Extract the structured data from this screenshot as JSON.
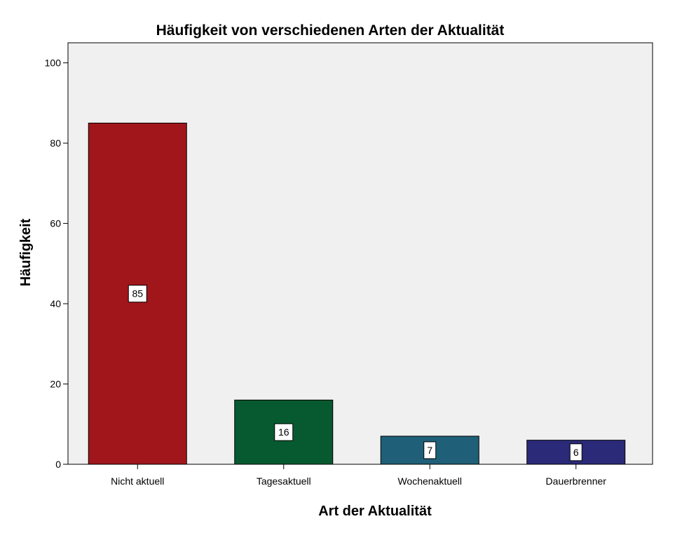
{
  "chart_data": {
    "type": "bar",
    "title": "Häufigkeit von verschiedenen Arten der Aktualität",
    "xlabel": "Art der Aktualität",
    "ylabel": "Häufigkeit",
    "categories": [
      "Nicht aktuell",
      "Tagesaktuell",
      "Wochenaktuell",
      "Dauerbrenner"
    ],
    "values": [
      85,
      16,
      7,
      6
    ],
    "data_labels": [
      "85",
      "16",
      "7",
      "6"
    ],
    "colors": [
      "#a0161b",
      "#075a30",
      "#1f5f78",
      "#2a2a78"
    ],
    "ylim": [
      0,
      105
    ],
    "yticks": [
      0,
      20,
      40,
      60,
      80,
      100
    ],
    "ytick_labels": [
      "0",
      "20",
      "40",
      "60",
      "80",
      "100"
    ],
    "plot_background": "#f0f0f0",
    "grid": false,
    "legend": "none"
  }
}
